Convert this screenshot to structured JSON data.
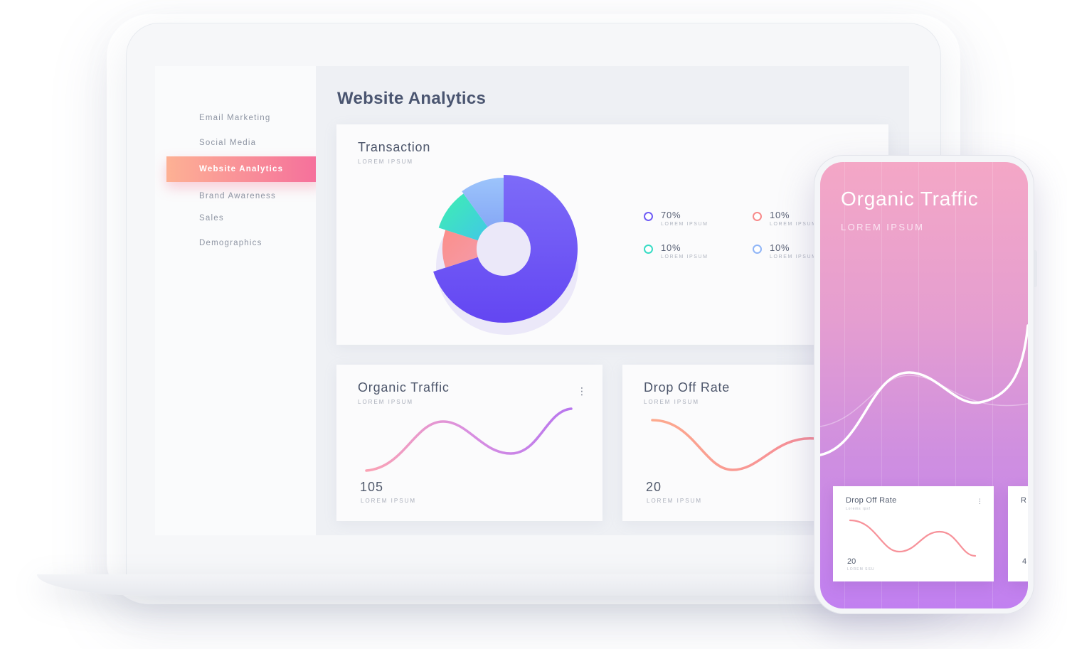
{
  "dashboard": {
    "title": "Website Analytics",
    "sidebar": {
      "items": [
        {
          "label": "Email Marketing",
          "active": false
        },
        {
          "label": "Social Media",
          "active": false
        },
        {
          "label": "Website Analytics",
          "active": true
        },
        {
          "label": "Brand Awareness",
          "active": false
        },
        {
          "label": "Sales",
          "active": false
        },
        {
          "label": "Demographics",
          "active": false
        }
      ]
    },
    "transaction": {
      "title": "Transaction",
      "subtitle": "LOREM IPSUM",
      "legend": [
        {
          "value": "70%",
          "label": "LOREM IPSUM",
          "color": "#6f5cf5"
        },
        {
          "value": "10%",
          "label": "LOREM IPSUM",
          "color": "#f88a8a"
        },
        {
          "value": "10%",
          "label": "LOREM IPSUM",
          "color": "#38dcc5"
        },
        {
          "value": "10%",
          "label": "LOREM IPSUM",
          "color": "#8fb5f7"
        }
      ]
    },
    "organic_traffic": {
      "title": "Organic Traffic",
      "subtitle": "LOREM IPSUM",
      "value": "105",
      "value_label": "LOREM IPSUM"
    },
    "drop_off_rate": {
      "title": "Drop Off Rate",
      "subtitle": "LOREM IPSUM",
      "value": "20",
      "value_label": "LOREM IPSUM"
    }
  },
  "phone": {
    "title": "Organic Traffic",
    "subtitle": "LOREM IPSUM",
    "card": {
      "title": "Drop Off Rate",
      "subtitle": "Lorems ipsf",
      "value": "20",
      "value_label": "LOREM SSU"
    },
    "card2": {
      "title": "R",
      "value": "4"
    }
  },
  "colors": {
    "accent_gradient_start": "#fdb194",
    "accent_gradient_end": "#f56e9c",
    "donut_primary": "#6f5cf5",
    "phone_gradient_top": "#f4a7c6",
    "phone_gradient_bottom": "#c180f0"
  },
  "icons": [
    "more-vertical-icon"
  ],
  "chart_data": [
    {
      "type": "pie",
      "title": "Transaction",
      "categories": [
        "LOREM IPSUM",
        "LOREM IPSUM",
        "LOREM IPSUM",
        "LOREM IPSUM"
      ],
      "values": [
        70,
        10,
        10,
        10
      ],
      "colors": [
        "#6f5cf5",
        "#f88a8a",
        "#38dcc5",
        "#8fb5f7"
      ],
      "donut": true
    },
    {
      "type": "line",
      "title": "Organic Traffic",
      "values": [
        0,
        1.2,
        2.5,
        2.1,
        1.1,
        0.9,
        1.6,
        2.7
      ],
      "axes": "hidden"
    },
    {
      "type": "line",
      "title": "Drop Off Rate",
      "values": [
        2.6,
        2.3,
        1.1,
        0.2,
        0.7,
        1.4
      ],
      "axes": "hidden"
    }
  ]
}
